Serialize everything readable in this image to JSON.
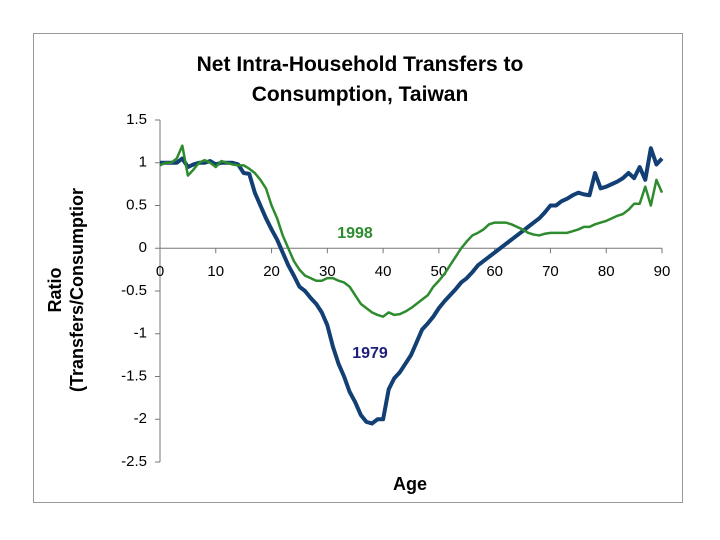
{
  "chart_data": {
    "type": "line",
    "title": "Net Intra-Household Transfers to Consumption, Taiwan",
    "x_label": "Age",
    "y_label": "Ratio (Transfers/Consumptior",
    "x": [
      0,
      1,
      2,
      3,
      4,
      5,
      6,
      7,
      8,
      9,
      10,
      11,
      12,
      13,
      14,
      15,
      16,
      17,
      18,
      19,
      20,
      21,
      22,
      23,
      24,
      25,
      26,
      27,
      28,
      29,
      30,
      31,
      32,
      33,
      34,
      35,
      36,
      37,
      38,
      39,
      40,
      41,
      42,
      43,
      44,
      45,
      46,
      47,
      48,
      49,
      50,
      51,
      52,
      53,
      54,
      55,
      56,
      57,
      58,
      59,
      60,
      61,
      62,
      63,
      64,
      65,
      66,
      67,
      68,
      69,
      70,
      71,
      72,
      73,
      74,
      75,
      76,
      77,
      78,
      79,
      80,
      81,
      82,
      83,
      84,
      85,
      86,
      87,
      88,
      89,
      90
    ],
    "series": [
      {
        "name": "1979",
        "color": "#123f74",
        "width": 4,
        "values": [
          1.0,
          1.0,
          1.0,
          1.0,
          1.05,
          0.95,
          0.98,
          1.0,
          1.0,
          1.02,
          0.98,
          1.0,
          1.0,
          1.0,
          0.98,
          0.88,
          0.87,
          0.65,
          0.5,
          0.35,
          0.22,
          0.1,
          -0.05,
          -0.2,
          -0.32,
          -0.45,
          -0.5,
          -0.58,
          -0.65,
          -0.75,
          -0.9,
          -1.15,
          -1.35,
          -1.5,
          -1.68,
          -1.8,
          -1.95,
          -2.03,
          -2.05,
          -2.0,
          -2.0,
          -1.65,
          -1.52,
          -1.45,
          -1.35,
          -1.25,
          -1.1,
          -0.95,
          -0.88,
          -0.8,
          -0.7,
          -0.62,
          -0.55,
          -0.48,
          -0.4,
          -0.35,
          -0.28,
          -0.2,
          -0.15,
          -0.1,
          -0.05,
          0.0,
          0.05,
          0.1,
          0.15,
          0.2,
          0.25,
          0.3,
          0.35,
          0.42,
          0.5,
          0.5,
          0.55,
          0.58,
          0.62,
          0.65,
          0.63,
          0.62,
          0.88,
          0.7,
          0.72,
          0.75,
          0.78,
          0.82,
          0.88,
          0.82,
          0.95,
          0.8,
          1.17,
          0.98,
          1.05
        ]
      },
      {
        "name": "1998",
        "color": "#2e8b2e",
        "width": 2.5,
        "values": [
          0.97,
          1.0,
          1.0,
          1.05,
          1.2,
          0.85,
          0.92,
          1.0,
          1.03,
          1.0,
          0.95,
          1.02,
          1.0,
          0.98,
          0.97,
          0.97,
          0.93,
          0.88,
          0.8,
          0.7,
          0.5,
          0.35,
          0.15,
          0.0,
          -0.15,
          -0.25,
          -0.32,
          -0.35,
          -0.38,
          -0.38,
          -0.35,
          -0.35,
          -0.38,
          -0.4,
          -0.45,
          -0.55,
          -0.65,
          -0.7,
          -0.75,
          -0.78,
          -0.8,
          -0.75,
          -0.78,
          -0.77,
          -0.74,
          -0.7,
          -0.65,
          -0.6,
          -0.55,
          -0.45,
          -0.38,
          -0.3,
          -0.2,
          -0.1,
          0.0,
          0.08,
          0.15,
          0.18,
          0.22,
          0.28,
          0.3,
          0.3,
          0.3,
          0.28,
          0.25,
          0.22,
          0.18,
          0.16,
          0.15,
          0.17,
          0.18,
          0.18,
          0.18,
          0.18,
          0.2,
          0.22,
          0.25,
          0.25,
          0.28,
          0.3,
          0.32,
          0.35,
          0.38,
          0.4,
          0.45,
          0.52,
          0.52,
          0.72,
          0.5,
          0.8,
          0.65
        ]
      }
    ],
    "annotations": [
      {
        "text": "1998",
        "color": "#2e8b2e"
      },
      {
        "text": "1979",
        "color": "#1f1f7a"
      }
    ],
    "xlim": [
      0,
      90
    ],
    "xticks": [
      0,
      10,
      20,
      30,
      40,
      50,
      60,
      70,
      80,
      90
    ],
    "ylim": [
      -2.5,
      1.5
    ],
    "yticks": [
      1.5,
      1,
      0.5,
      0,
      -0.5,
      -1,
      -1.5,
      -2,
      -2.5
    ],
    "grid": false
  }
}
